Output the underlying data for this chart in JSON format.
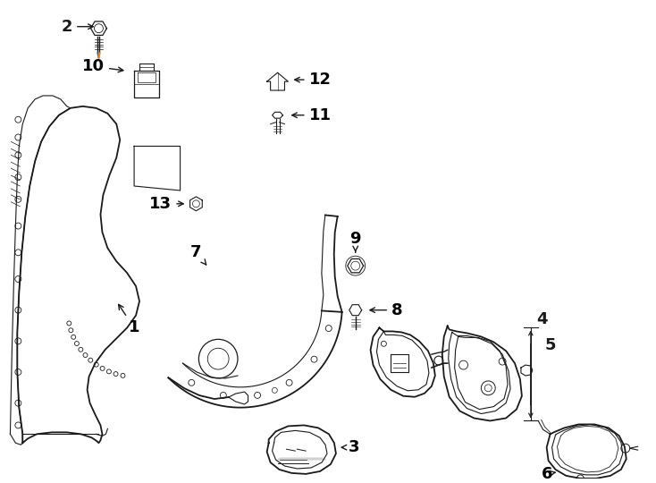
{
  "background_color": "#ffffff",
  "line_color": "#1a1a1a",
  "label_color": "#000000",
  "font_size_labels": 13,
  "lw_main": 1.3,
  "lw_thin": 0.8,
  "lw_detail": 0.6
}
